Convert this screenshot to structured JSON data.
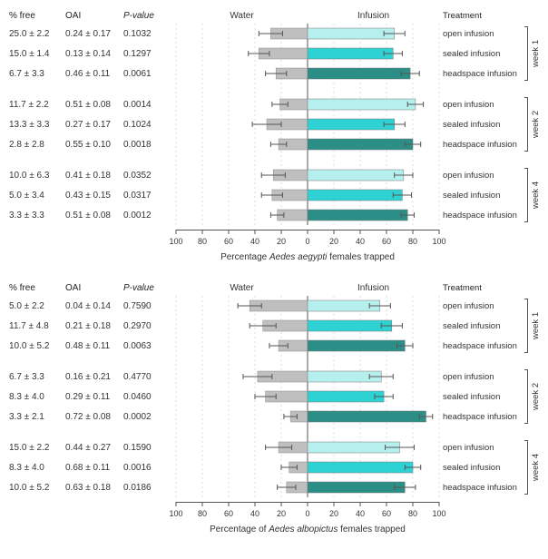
{
  "colors": {
    "water_bar": "#bfbfbf",
    "infusion_open": "#b6f0ee",
    "infusion_sealed": "#2fd2d2",
    "infusion_headspace": "#2b8f87",
    "error_bar": "#555555",
    "grid": "#dcdcdc",
    "axis": "#555555",
    "text": "#333333"
  },
  "axis": {
    "ticks": [
      100,
      80,
      60,
      40,
      20,
      0,
      20,
      40,
      60,
      80,
      100
    ],
    "xlim": 100
  },
  "headers": {
    "free": "% free",
    "oai": "OAI",
    "pval": "P-value",
    "water": "Water",
    "infusion": "Infusion",
    "treatment": "Treatment"
  },
  "panels": [
    {
      "xlabel_pre": "Percentage ",
      "xlabel_species": "Aedes aegypti",
      "xlabel_post": " females trapped",
      "groups": [
        {
          "week": "week 1",
          "rows": [
            {
              "free": "25.0 ± 2.2",
              "oai": "0.24 ± 0.17",
              "pval": "0.1032",
              "treatment": "open infusion",
              "water": 28,
              "water_err": 9,
              "infusion": 66,
              "infusion_err": 8,
              "color_key": "infusion_open"
            },
            {
              "free": "15.0 ± 1.4",
              "oai": "0.13 ± 0.14",
              "pval": "0.1297",
              "treatment": "sealed infusion",
              "water": 37,
              "water_err": 8,
              "infusion": 65,
              "infusion_err": 7,
              "color_key": "infusion_sealed"
            },
            {
              "free": "6.7 ± 3.3",
              "oai": "0.46 ± 0.11",
              "pval": "0.0061",
              "treatment": "headspace infusion",
              "water": 24,
              "water_err": 8,
              "infusion": 78,
              "infusion_err": 7,
              "color_key": "infusion_headspace"
            }
          ]
        },
        {
          "week": "week 2",
          "rows": [
            {
              "free": "11.7 ± 2.2",
              "oai": "0.51 ± 0.08",
              "pval": "0.0014",
              "treatment": "open infusion",
              "water": 21,
              "water_err": 6,
              "infusion": 82,
              "infusion_err": 6,
              "color_key": "infusion_open"
            },
            {
              "free": "13.3 ± 3.3",
              "oai": "0.27 ± 0.17",
              "pval": "0.1024",
              "treatment": "sealed infusion",
              "water": 31,
              "water_err": 11,
              "infusion": 66,
              "infusion_err": 8,
              "color_key": "infusion_sealed"
            },
            {
              "free": "2.8 ± 2.8",
              "oai": "0.55 ± 0.10",
              "pval": "0.0018",
              "treatment": "headspace infusion",
              "water": 22,
              "water_err": 6,
              "infusion": 80,
              "infusion_err": 6,
              "color_key": "infusion_headspace"
            }
          ]
        },
        {
          "week": "week 4",
          "rows": [
            {
              "free": "10.0 ± 6.3",
              "oai": "0.41 ± 0.18",
              "pval": "0.0352",
              "treatment": "open infusion",
              "water": 26,
              "water_err": 9,
              "infusion": 73,
              "infusion_err": 7,
              "color_key": "infusion_open"
            },
            {
              "free": "5.0 ± 3.4",
              "oai": "0.43 ± 0.15",
              "pval": "0.0317",
              "treatment": "sealed infusion",
              "water": 27,
              "water_err": 8,
              "infusion": 72,
              "infusion_err": 7,
              "color_key": "infusion_sealed"
            },
            {
              "free": "3.3 ± 3.3",
              "oai": "0.51 ± 0.08",
              "pval": "0.0012",
              "treatment": "headspace infusion",
              "water": 23,
              "water_err": 5,
              "infusion": 76,
              "infusion_err": 5,
              "color_key": "infusion_headspace"
            }
          ]
        }
      ]
    },
    {
      "xlabel_pre": "Percentage of ",
      "xlabel_species": "Aedes albopictus",
      "xlabel_post": " females trapped",
      "groups": [
        {
          "week": "week 1",
          "rows": [
            {
              "free": "5.0 ± 2.2",
              "oai": "0.04 ± 0.14",
              "pval": "0.7590",
              "treatment": "open infusion",
              "water": 44,
              "water_err": 9,
              "infusion": 55,
              "infusion_err": 8,
              "color_key": "infusion_open"
            },
            {
              "free": "11.7 ± 4.8",
              "oai": "0.21 ± 0.18",
              "pval": "0.2970",
              "treatment": "sealed infusion",
              "water": 34,
              "water_err": 10,
              "infusion": 64,
              "infusion_err": 8,
              "color_key": "infusion_sealed"
            },
            {
              "free": "10.0 ± 5.2",
              "oai": "0.48 ± 0.11",
              "pval": "0.0063",
              "treatment": "headspace infusion",
              "water": 22,
              "water_err": 7,
              "infusion": 74,
              "infusion_err": 6,
              "color_key": "infusion_headspace"
            }
          ]
        },
        {
          "week": "week 2",
          "rows": [
            {
              "free": "6.7 ± 3.3",
              "oai": "0.16 ± 0.21",
              "pval": "0.4770",
              "treatment": "open infusion",
              "water": 38,
              "water_err": 11,
              "infusion": 56,
              "infusion_err": 9,
              "color_key": "infusion_open"
            },
            {
              "free": "8.3 ± 4.0",
              "oai": "0.29 ± 0.11",
              "pval": "0.0460",
              "treatment": "sealed infusion",
              "water": 32,
              "water_err": 8,
              "infusion": 58,
              "infusion_err": 7,
              "color_key": "infusion_sealed"
            },
            {
              "free": "3.3 ± 2.1",
              "oai": "0.72 ± 0.08",
              "pval": "0.0002",
              "treatment": "headspace infusion",
              "water": 13,
              "water_err": 5,
              "infusion": 90,
              "infusion_err": 5,
              "color_key": "infusion_headspace"
            }
          ]
        },
        {
          "week": "week 4",
          "rows": [
            {
              "free": "15.0 ± 2.2",
              "oai": "0.44 ± 0.27",
              "pval": "0.1590",
              "treatment": "open infusion",
              "water": 22,
              "water_err": 10,
              "infusion": 70,
              "infusion_err": 11,
              "color_key": "infusion_open"
            },
            {
              "free": "8.3 ± 4.0",
              "oai": "0.68 ± 0.11",
              "pval": "0.0016",
              "treatment": "sealed infusion",
              "water": 14,
              "water_err": 6,
              "infusion": 80,
              "infusion_err": 6,
              "color_key": "infusion_sealed"
            },
            {
              "free": "10.0 ± 5.2",
              "oai": "0.63 ± 0.18",
              "pval": "0.0186",
              "treatment": "headspace infusion",
              "water": 16,
              "water_err": 7,
              "infusion": 74,
              "infusion_err": 8,
              "color_key": "infusion_headspace"
            }
          ]
        }
      ]
    }
  ]
}
